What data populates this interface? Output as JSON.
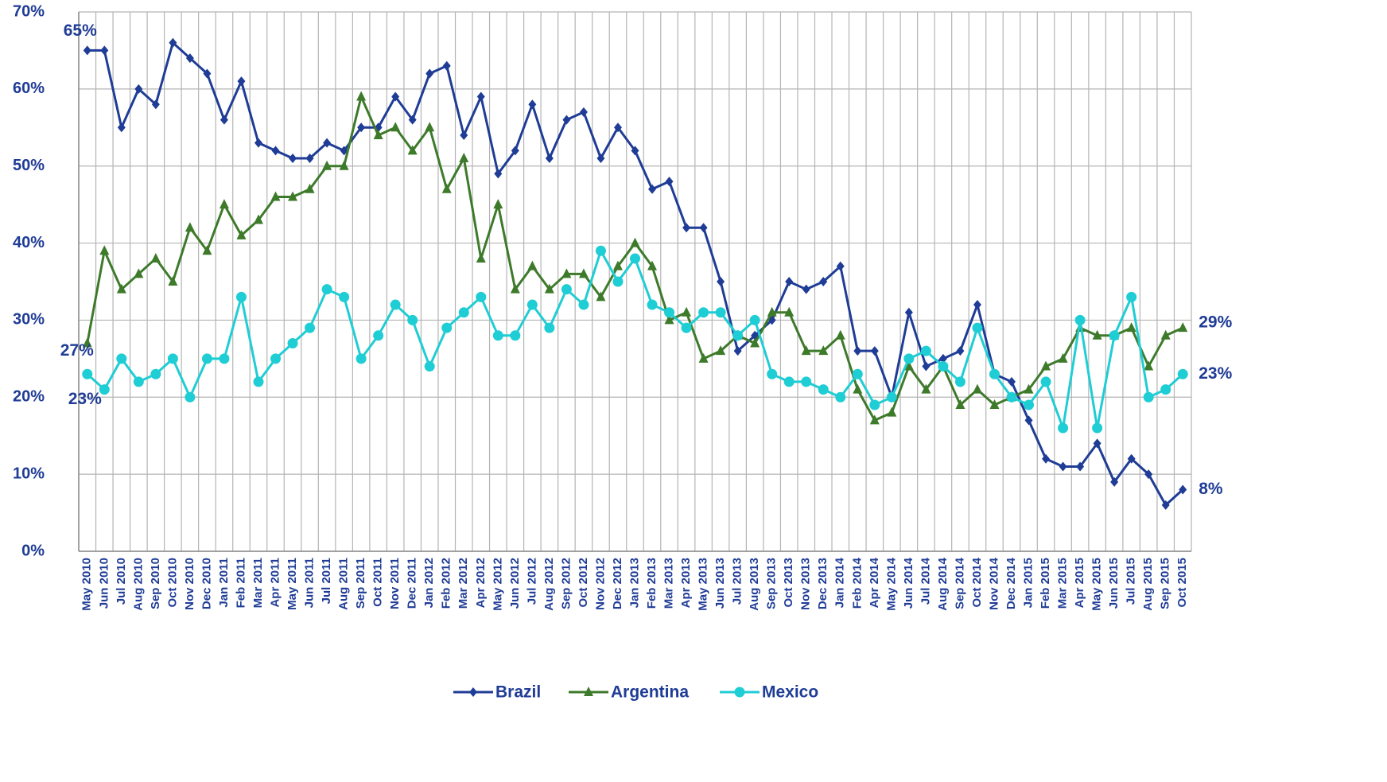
{
  "chart_data": {
    "type": "line",
    "categories": [
      "May 2010",
      "Jun 2010",
      "Jul 2010",
      "Aug 2010",
      "Sep 2010",
      "Oct 2010",
      "Nov 2010",
      "Dec 2010",
      "Jan 2011",
      "Feb 2011",
      "Mar 2011",
      "Apr 2011",
      "May 2011",
      "Jun 2011",
      "Jul 2011",
      "Aug 2011",
      "Sep 2011",
      "Oct 2011",
      "Nov 2011",
      "Dec 2011",
      "Jan 2012",
      "Feb 2012",
      "Mar 2012",
      "Apr 2012",
      "May 2012",
      "Jun 2012",
      "Jul 2012",
      "Aug 2012",
      "Sep 2012",
      "Oct 2012",
      "Nov 2012",
      "Dec 2012",
      "Jan 2013",
      "Feb 2013",
      "Mar 2013",
      "Apr 2013",
      "May 2013",
      "Jun 2013",
      "Jul 2013",
      "Aug 2013",
      "Sep 2013",
      "Oct 2013",
      "Nov 2013",
      "Dec 2013",
      "Jan 2014",
      "Feb 2014",
      "Apr 2014",
      "May 2014",
      "Jun 2014",
      "Jul 2014",
      "Aug 2014",
      "Sep 2014",
      "Oct 2014",
      "Nov 2014",
      "Dec 2014",
      "Jan 2015",
      "Feb 2015",
      "Mar 2015",
      "Apr 2015",
      "May 2015",
      "Jun 2015",
      "Jul 2015",
      "Aug 2015",
      "Sep 2015",
      "Oct 2015"
    ],
    "series": [
      {
        "name": "Brazil",
        "color": "#1f3c96",
        "marker": "diamond",
        "values": [
          65,
          65,
          55,
          60,
          58,
          66,
          64,
          62,
          56,
          61,
          53,
          52,
          51,
          51,
          53,
          52,
          55,
          55,
          59,
          56,
          62,
          63,
          54,
          59,
          49,
          52,
          58,
          51,
          56,
          57,
          51,
          55,
          52,
          47,
          48,
          42,
          42,
          35,
          26,
          28,
          30,
          35,
          34,
          35,
          37,
          26,
          26,
          20,
          31,
          24,
          25,
          26,
          32,
          23,
          22,
          17,
          12,
          11,
          11,
          14,
          9,
          12,
          10,
          6,
          8
        ],
        "value_labels": [
          "65%",
          null,
          null,
          null,
          null,
          null,
          null,
          null,
          null,
          null,
          null,
          null,
          null,
          null,
          null,
          null,
          null,
          null,
          null,
          null,
          null,
          null,
          null,
          null,
          null,
          null,
          null,
          null,
          null,
          null,
          null,
          null,
          null,
          null,
          null,
          null,
          null,
          null,
          null,
          null,
          null,
          null,
          null,
          null,
          null,
          null,
          null,
          null,
          null,
          null,
          null,
          null,
          null,
          null,
          null,
          null,
          null,
          null,
          null,
          null,
          null,
          null,
          null,
          null,
          "8%"
        ]
      },
      {
        "name": "Argentina",
        "color": "#3d7a2a",
        "marker": "triangle",
        "values": [
          27,
          39,
          34,
          36,
          38,
          35,
          42,
          39,
          45,
          41,
          43,
          46,
          46,
          47,
          50,
          50,
          59,
          54,
          55,
          52,
          55,
          47,
          51,
          38,
          45,
          34,
          37,
          34,
          36,
          36,
          33,
          37,
          40,
          37,
          30,
          31,
          25,
          26,
          28,
          27,
          31,
          31,
          26,
          26,
          28,
          21,
          17,
          18,
          24,
          21,
          24,
          19,
          21,
          19,
          20,
          21,
          24,
          25,
          29,
          28,
          28,
          29,
          24,
          28,
          29
        ],
        "value_labels": [
          "27%",
          null,
          null,
          null,
          null,
          null,
          null,
          null,
          null,
          null,
          null,
          null,
          null,
          null,
          null,
          null,
          null,
          null,
          null,
          null,
          null,
          null,
          null,
          null,
          null,
          null,
          null,
          null,
          null,
          null,
          null,
          null,
          null,
          null,
          null,
          null,
          null,
          null,
          null,
          null,
          null,
          null,
          null,
          null,
          null,
          null,
          null,
          null,
          null,
          null,
          null,
          null,
          null,
          null,
          null,
          null,
          null,
          null,
          null,
          null,
          null,
          null,
          null,
          null,
          "29%"
        ]
      },
      {
        "name": "Mexico",
        "color": "#1fcdd4",
        "marker": "circle",
        "values": [
          23,
          21,
          25,
          22,
          23,
          25,
          20,
          25,
          25,
          33,
          22,
          25,
          27,
          29,
          34,
          33,
          25,
          28,
          32,
          30,
          24,
          29,
          31,
          33,
          28,
          28,
          32,
          29,
          34,
          32,
          39,
          35,
          38,
          32,
          31,
          29,
          31,
          31,
          28,
          30,
          23,
          22,
          22,
          21,
          20,
          23,
          19,
          20,
          25,
          26,
          24,
          22,
          29,
          23,
          20,
          19,
          22,
          16,
          30,
          16,
          28,
          33,
          20,
          21,
          23
        ],
        "value_labels": [
          "23%",
          null,
          null,
          null,
          null,
          null,
          null,
          null,
          null,
          null,
          null,
          null,
          null,
          null,
          null,
          null,
          null,
          null,
          null,
          null,
          null,
          null,
          null,
          null,
          null,
          null,
          null,
          null,
          null,
          null,
          null,
          null,
          null,
          null,
          null,
          null,
          null,
          null,
          null,
          null,
          null,
          null,
          null,
          null,
          null,
          null,
          null,
          null,
          null,
          null,
          null,
          null,
          null,
          null,
          null,
          null,
          null,
          null,
          null,
          null,
          null,
          null,
          null,
          null,
          "23%"
        ]
      }
    ],
    "ylim": [
      0,
      70
    ],
    "yticks": [
      {
        "value": 0,
        "label": "0%"
      },
      {
        "value": 10,
        "label": "10%"
      },
      {
        "value": 20,
        "label": "20%"
      },
      {
        "value": 30,
        "label": "30%"
      },
      {
        "value": 40,
        "label": "40%"
      },
      {
        "value": 50,
        "label": "50%"
      },
      {
        "value": 60,
        "label": "60%"
      },
      {
        "value": 70,
        "label": "70%"
      }
    ],
    "grid": true,
    "legend": "bottom"
  }
}
